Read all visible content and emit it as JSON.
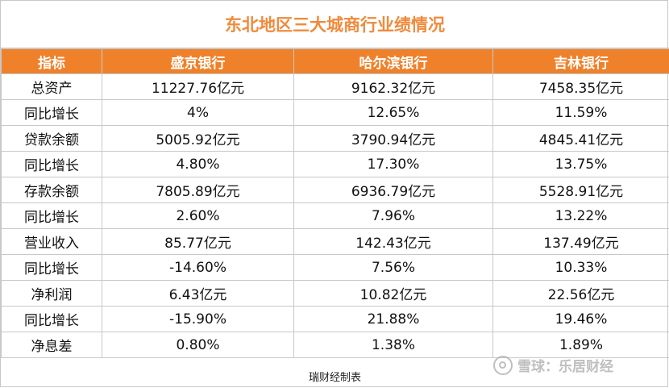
{
  "title": "东北地区三大城商行业绩情况",
  "table": {
    "headers": [
      "指标",
      "盛京银行",
      "哈尔滨银行",
      "吉林银行"
    ],
    "rows": [
      {
        "label": "总资产",
        "v1": "11227.76亿元",
        "v2": "9162.32亿元",
        "v3": "7458.35亿元"
      },
      {
        "label": "同比增长",
        "v1": "4%",
        "v2": "12.65%",
        "v3": "11.59%"
      },
      {
        "label": "贷款余额",
        "v1": "5005.92亿元",
        "v2": "3790.94亿元",
        "v3": "4845.41亿元"
      },
      {
        "label": "同比增长",
        "v1": "4.80%",
        "v2": "17.30%",
        "v3": "13.75%"
      },
      {
        "label": "存款余额",
        "v1": "7805.89亿元",
        "v2": "6936.79亿元",
        "v3": "5528.91亿元"
      },
      {
        "label": "同比增长",
        "v1": "2.60%",
        "v2": "7.96%",
        "v3": "13.22%"
      },
      {
        "label": "营业收入",
        "v1": "85.77亿元",
        "v2": "142.43亿元",
        "v3": "137.49亿元"
      },
      {
        "label": "同比增长",
        "v1": "-14.60%",
        "v2": "7.56%",
        "v3": "10.33%"
      },
      {
        "label": "净利润",
        "v1": "6.43亿元",
        "v2": "10.82亿元",
        "v3": "22.56亿元"
      },
      {
        "label": "同比增长",
        "v1": "-15.90%",
        "v2": "21.88%",
        "v3": "19.46%"
      },
      {
        "label": "净息差",
        "v1": "0.80%",
        "v2": "1.38%",
        "v3": "1.89%"
      }
    ]
  },
  "footer": "瑞财经制表",
  "watermark": {
    "icon": "snowball-logo-icon",
    "text": "雪球：乐居财经"
  },
  "colors": {
    "title": "#f08a3c",
    "header_bg": "#f0812b",
    "header_text": "#ffffff",
    "grid": "#c8c8c8"
  }
}
